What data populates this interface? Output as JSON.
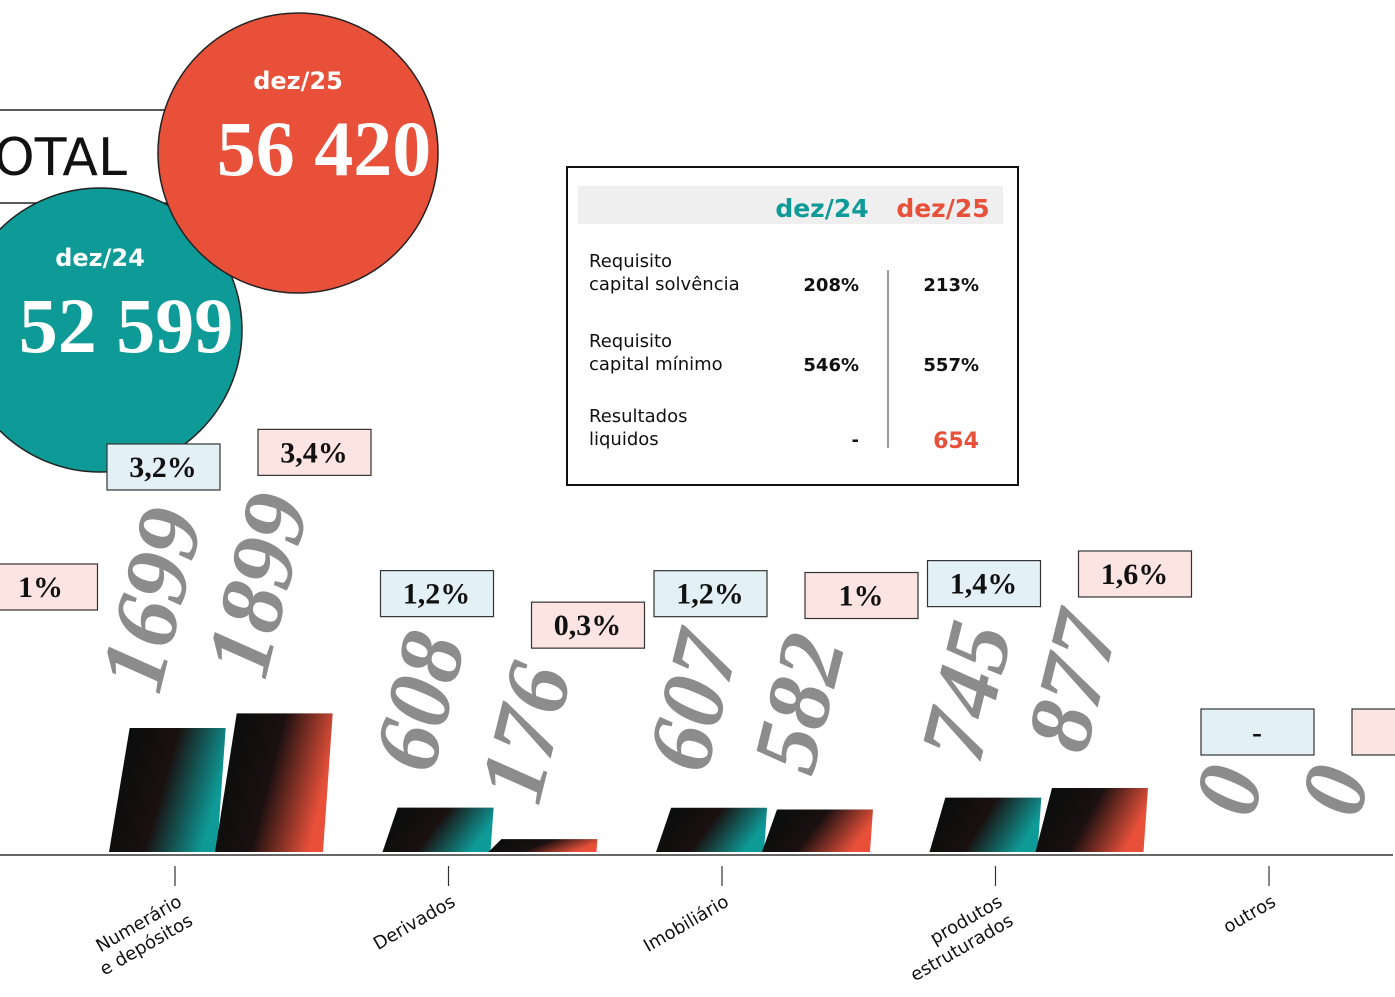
{
  "chart_data": {
    "type": "bar",
    "total_label": "TOTAL",
    "categories": [
      null,
      [
        "Numerário",
        "e depósitos"
      ],
      [
        "Derivados"
      ],
      [
        "Imobiliário"
      ],
      [
        "produtos",
        "estruturados"
      ],
      [
        "outros"
      ]
    ],
    "series": [
      {
        "name": "dez/24",
        "color": "#0e9a97",
        "total": 52599,
        "total_label": "52 599",
        "values": [
          null,
          1699,
          608,
          607,
          745,
          0
        ],
        "share_labels": [
          null,
          "3,2%",
          "1,2%",
          "1,2%",
          "1,4%",
          "-"
        ]
      },
      {
        "name": "dez/25",
        "color": "#e8503a",
        "total": 56420,
        "total_label": "56 420",
        "values": [
          null,
          1899,
          176,
          582,
          877,
          0
        ],
        "share_labels": [
          "1%",
          "3,4%",
          "0,3%",
          "1%",
          "1,6%",
          "-"
        ]
      }
    ],
    "ylim": [
      0,
      6000
    ]
  },
  "table": {
    "rows": [
      {
        "label": [
          "Requisito",
          "capital solvência"
        ],
        "values": [
          "208%",
          "213%"
        ]
      },
      {
        "label": [
          "Requisito",
          "capital mínimo"
        ],
        "values": [
          "546%",
          "557%"
        ]
      },
      {
        "label": [
          "Resultados",
          "liquidos"
        ],
        "values": [
          "-",
          "654"
        ]
      }
    ]
  }
}
